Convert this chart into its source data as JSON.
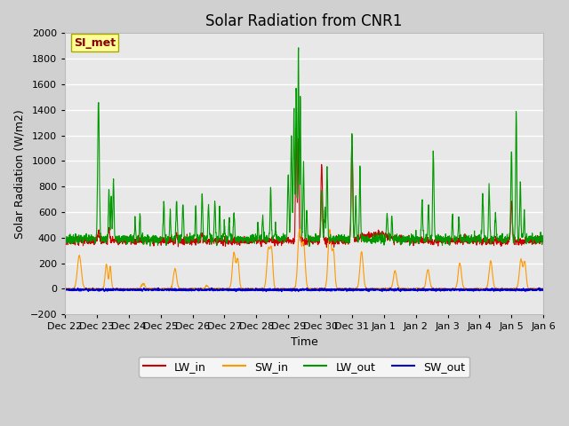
{
  "title": "Solar Radiation from CNR1",
  "xlabel": "Time",
  "ylabel": "Solar Radiation (W/m2)",
  "ylim": [
    -200,
    2000
  ],
  "annotation": "SI_met",
  "legend_labels": [
    "LW_in",
    "SW_in",
    "LW_out",
    "SW_out"
  ],
  "legend_colors": [
    "#cc0000",
    "#ff9900",
    "#009900",
    "#0000cc"
  ],
  "tick_labels": [
    "Dec 22",
    "Dec 23",
    "Dec 24",
    "Dec 25",
    "Dec 26",
    "Dec 27",
    "Dec 28",
    "Dec 29",
    "Dec 30",
    "Dec 31",
    "Jan 1",
    "Jan 2",
    "Jan 3",
    "Jan 4",
    "Jan 5",
    "Jan 6"
  ],
  "title_fontsize": 12,
  "axis_fontsize": 9,
  "legend_fontsize": 9
}
